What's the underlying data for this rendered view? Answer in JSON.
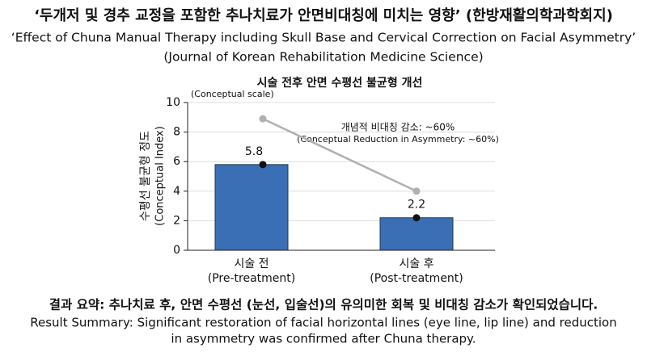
{
  "header": {
    "title_ko": "‘두개저 및 경추 교정을 포함한 추나치료가 안면비대칭에 미치는 영향’ (한방재활의학과학회지)",
    "title_en": "‘Effect of Chuna Manual Therapy including Skull Base and Cervical Correction on Facial Asymmetry’",
    "journal": "(Journal of Korean Rehabilitation Medicine Science)"
  },
  "chart_data": {
    "type": "bar",
    "title": "시술 전후 안면 수평선 불균형 개선",
    "scale_note": "(Conceptual scale)",
    "ylabel": [
      "수평선 불균형 정도",
      "(Conceptual Index)"
    ],
    "categories": [
      "시술 전",
      "시술 후"
    ],
    "category_subtitles": [
      "(Pre-treatment)",
      "(Post-treatment)"
    ],
    "values": [
      5.8,
      2.2
    ],
    "color": "#3a6fb5",
    "trend": {
      "values": [
        8.9,
        4.0
      ],
      "color": "#b0b0b0"
    },
    "annotation": [
      "개념적 비대칭 감소: ~60%",
      "(Conceptual Reduction in Asymmetry: ~60%)"
    ],
    "ylim": [
      0,
      10
    ],
    "yticks": [
      0,
      2,
      4,
      6,
      8,
      10
    ],
    "grid": true
  },
  "summary": {
    "ko": "결과 요약: 추나치료 후, 안면 수평선 (눈선, 입술선)의 유의미한 회복 및 비대칭 감소가 확인되었습니다.",
    "en": [
      "Result Summary: Significant restoration of facial horizontal lines (eye line, lip line) and reduction",
      "in asymmetry was confirmed after Chuna therapy."
    ]
  }
}
